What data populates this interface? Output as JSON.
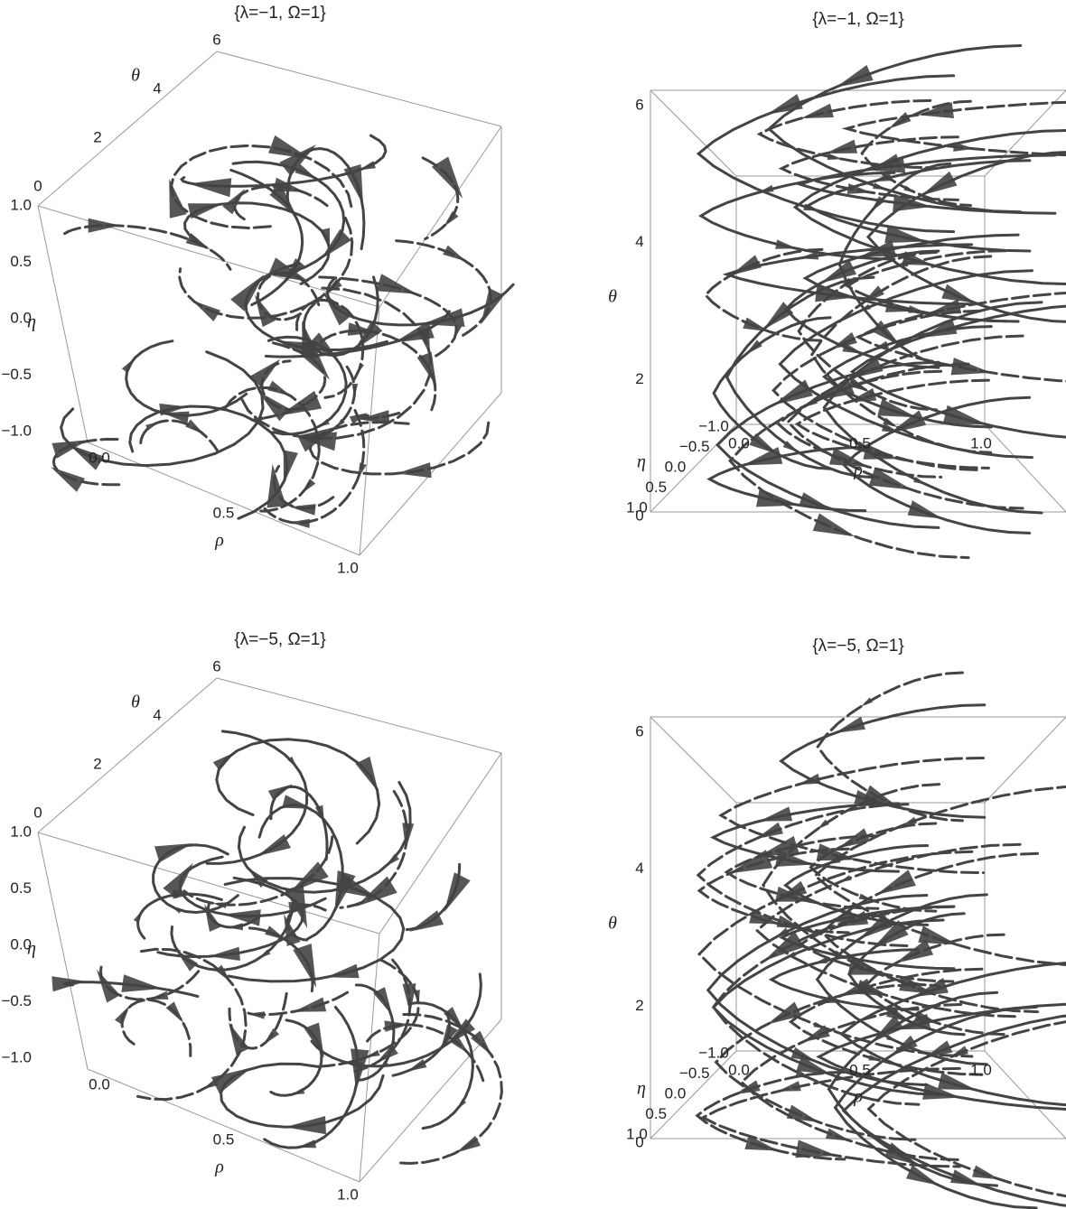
{
  "chart_data": [
    {
      "type": "stream3d",
      "view": "oblique",
      "title": "{λ=−1, Ω=1}",
      "xlabel": "ρ",
      "ylabel": "η",
      "zlabel": "θ",
      "xlim": [
        0,
        1
      ],
      "ylim": [
        -1,
        1
      ],
      "zlim": [
        0,
        6
      ],
      "xticks": [
        {
          "value": 0,
          "label": "0.0"
        },
        0.5,
        {
          "value": 1,
          "label": "1.0"
        }
      ],
      "yticks": [
        {
          "value": -1,
          "label": "−1.0"
        },
        {
          "value": -0.5,
          "label": "−0.5"
        },
        {
          "value": 0,
          "label": "0.0"
        },
        0.5,
        {
          "value": 1,
          "label": "1.0"
        }
      ],
      "zticks": [
        0,
        2,
        4,
        6
      ]
    },
    {
      "type": "stream3d",
      "view": "front",
      "title": "{λ=−1, Ω=1}",
      "xlabel": "ρ",
      "ylabel": "η",
      "zlabel": "θ",
      "xlim": [
        0,
        1
      ],
      "ylim": [
        -1,
        1
      ],
      "zlim": [
        0,
        6
      ],
      "xticks": [
        {
          "value": 0,
          "label": "0.0"
        },
        0.5,
        {
          "value": 1,
          "label": "1.0"
        }
      ],
      "yticks": [
        {
          "value": -1,
          "label": "−1.0"
        },
        {
          "value": -0.5,
          "label": "−0.5"
        },
        {
          "value": 0,
          "label": "0.0"
        },
        0.5,
        {
          "value": 1,
          "label": "1.0"
        }
      ],
      "zticks": [
        0,
        2,
        4,
        6
      ]
    },
    {
      "type": "stream3d",
      "view": "oblique",
      "title": "{λ=−5, Ω=1}",
      "xlabel": "ρ",
      "ylabel": "η",
      "zlabel": "θ",
      "xlim": [
        0,
        1
      ],
      "ylim": [
        -1,
        1
      ],
      "zlim": [
        0,
        6
      ],
      "xticks": [
        {
          "value": 0,
          "label": "0.0"
        },
        0.5,
        {
          "value": 1,
          "label": "1.0"
        }
      ],
      "yticks": [
        {
          "value": -1,
          "label": "−1.0"
        },
        {
          "value": -0.5,
          "label": "−0.5"
        },
        {
          "value": 0,
          "label": "0.0"
        },
        0.5,
        {
          "value": 1,
          "label": "1.0"
        }
      ],
      "zticks": [
        0,
        2,
        4,
        6
      ]
    },
    {
      "type": "stream3d",
      "view": "front",
      "title": "{λ=−5, Ω=1}",
      "xlabel": "ρ",
      "ylabel": "η",
      "zlabel": "θ",
      "xlim": [
        0,
        1
      ],
      "ylim": [
        -1,
        1
      ],
      "zlim": [
        0,
        6
      ],
      "xticks": [
        {
          "value": 0,
          "label": "0.0"
        },
        0.5,
        {
          "value": 1,
          "label": "1.0"
        }
      ],
      "yticks": [
        {
          "value": -1,
          "label": "−1.0"
        },
        {
          "value": -0.5,
          "label": "−0.5"
        },
        {
          "value": 0,
          "label": "0.0"
        },
        0.5,
        {
          "value": 1,
          "label": "1.0"
        }
      ],
      "zticks": [
        0,
        2,
        4,
        6
      ]
    }
  ]
}
